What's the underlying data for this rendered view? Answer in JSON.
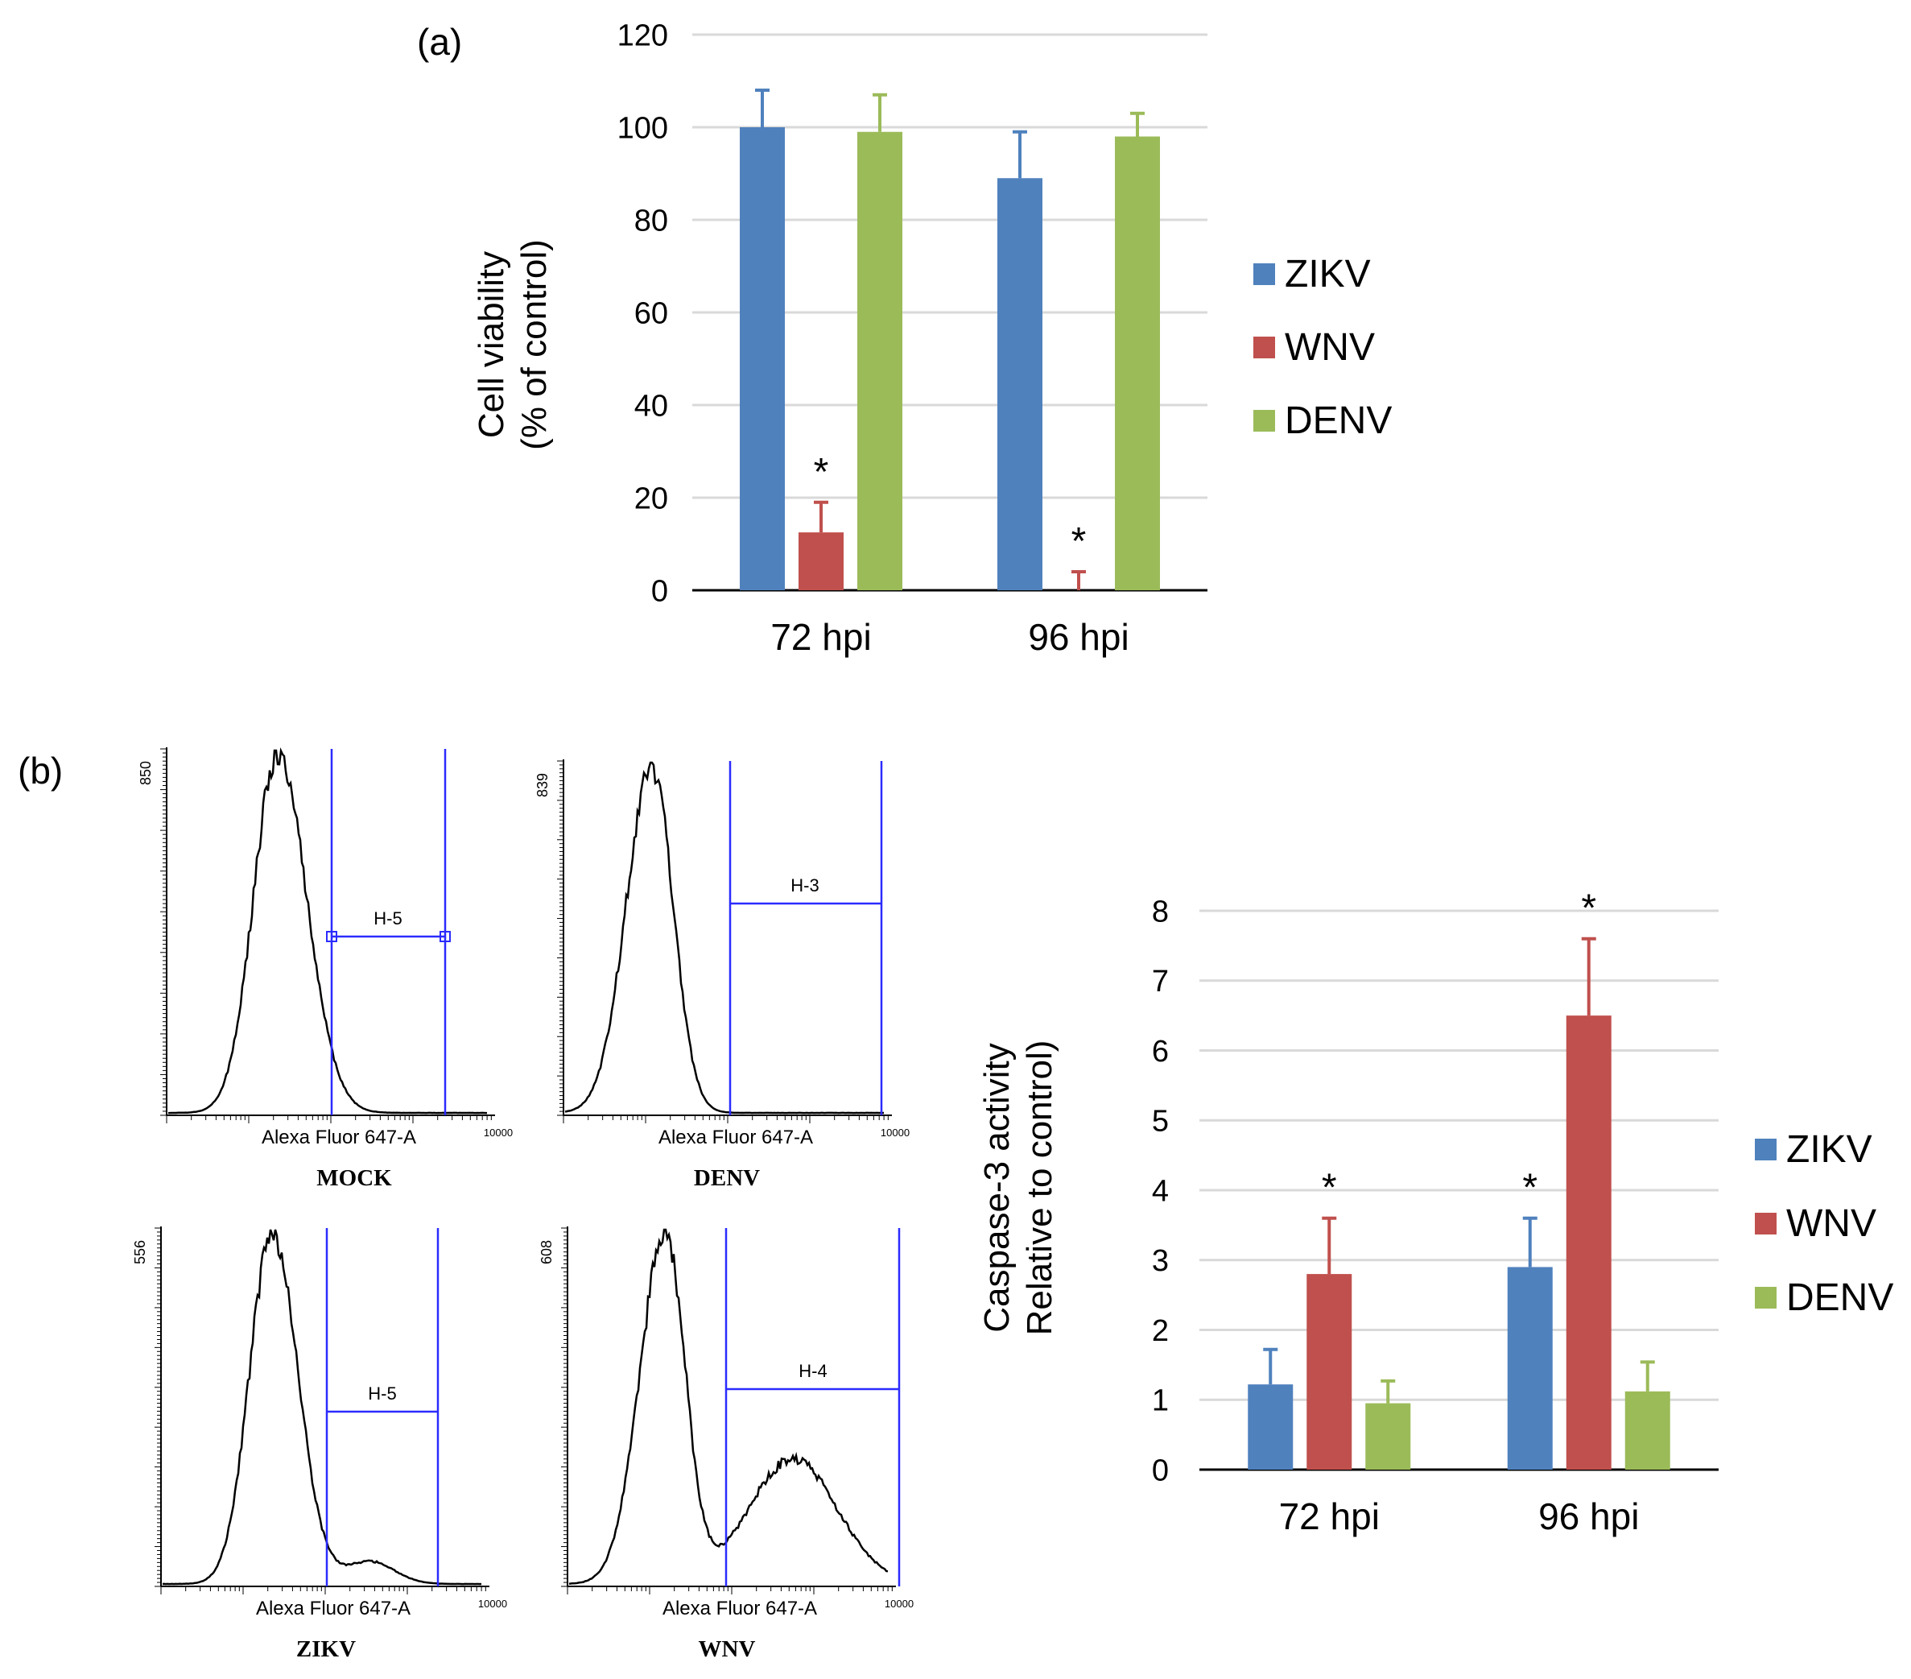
{
  "panel_labels": {
    "a": "(a)",
    "b": "(b)"
  },
  "colors": {
    "ZIKV": "#4f81bd",
    "WNV": "#c0504d",
    "DENV": "#9bbb59",
    "gate": "#2b2bff",
    "grid": "#d9d9d9",
    "axis": "#000000"
  },
  "chart_data": [
    {
      "id": "viability",
      "type": "bar",
      "title": "",
      "ylabel_line1": "Cell viability",
      "ylabel_line2": "(% of control)",
      "xlabel": "",
      "categories": [
        "72 hpi",
        "96 hpi"
      ],
      "ylim": [
        0,
        120
      ],
      "yticks": [
        0,
        20,
        40,
        60,
        80,
        100,
        120
      ],
      "grid": true,
      "legend_position": "right",
      "series": [
        {
          "name": "ZIKV",
          "values": [
            100,
            89
          ],
          "errors": [
            8,
            10
          ]
        },
        {
          "name": "WNV",
          "values": [
            12.5,
            0
          ],
          "errors": [
            6.5,
            4
          ]
        },
        {
          "name": "DENV",
          "values": [
            99,
            98
          ],
          "errors": [
            8,
            5
          ]
        }
      ],
      "annotations": [
        {
          "text": "*",
          "series": "WNV",
          "category": "72 hpi"
        },
        {
          "text": "*",
          "series": "WNV",
          "category": "96 hpi"
        }
      ]
    },
    {
      "id": "caspase",
      "type": "bar",
      "title": "",
      "ylabel_line1": "Caspase-3 activity",
      "ylabel_line2": "Relative to control)",
      "xlabel": "",
      "categories": [
        "72 hpi",
        "96 hpi"
      ],
      "ylim": [
        0,
        8
      ],
      "yticks": [
        0,
        1,
        2,
        3,
        4,
        5,
        6,
        7,
        8
      ],
      "grid": true,
      "legend_position": "right",
      "series": [
        {
          "name": "ZIKV",
          "values": [
            1.22,
            2.9
          ],
          "errors": [
            0.5,
            0.7
          ]
        },
        {
          "name": "WNV",
          "values": [
            2.8,
            6.5
          ],
          "errors": [
            0.8,
            1.1
          ]
        },
        {
          "name": "DENV",
          "values": [
            0.95,
            1.12
          ],
          "errors": [
            0.32,
            0.42
          ]
        }
      ],
      "annotations": [
        {
          "text": "*",
          "series": "WNV",
          "category": "72 hpi"
        },
        {
          "text": "*",
          "series": "ZIKV",
          "category": "96 hpi"
        },
        {
          "text": "*",
          "series": "WNV",
          "category": "96 hpi"
        }
      ]
    }
  ],
  "flow_panels": [
    {
      "id": "mock",
      "name": "MOCK",
      "ymax_label": "850",
      "xlabel": "Alexa Fluor 647-A",
      "xmax_label": "10000",
      "gate_label": "H-5"
    },
    {
      "id": "denv",
      "name": "DENV",
      "ymax_label": "839",
      "xlabel": "Alexa Fluor 647-A",
      "xmax_label": "10000",
      "gate_label": "H-3"
    },
    {
      "id": "zikv",
      "name": "ZIKV",
      "ymax_label": "556",
      "xlabel": "Alexa Fluor 647-A",
      "xmax_label": "10000",
      "gate_label": "H-5"
    },
    {
      "id": "wnv",
      "name": "WNV",
      "ymax_label": "608",
      "xlabel": "Alexa Fluor 647-A",
      "xmax_label": "10000",
      "gate_label": "H-4"
    }
  ]
}
